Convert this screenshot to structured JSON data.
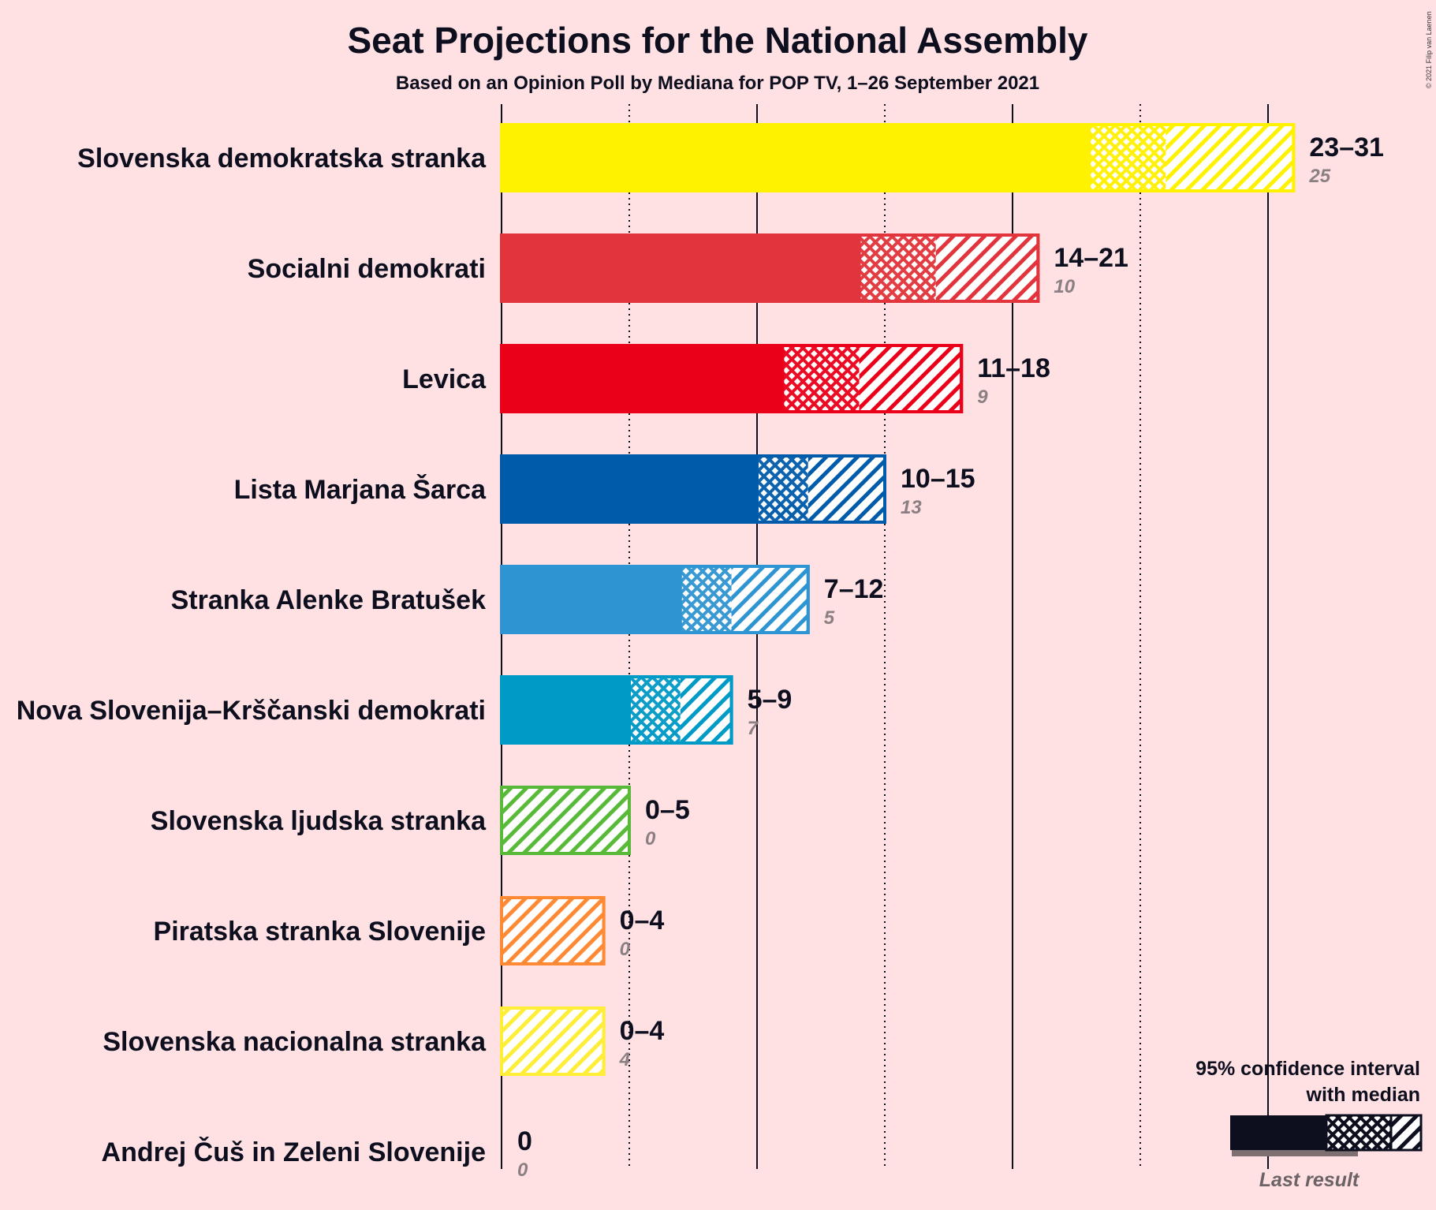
{
  "title": "Seat Projections for the National Assembly",
  "subtitle": "Based on an Opinion Poll by Mediana for POP TV, 1–26 September 2021",
  "copyright": "© 2021 Filip van Laenen",
  "legend": {
    "line1": "95% confidence interval",
    "line2": "with median",
    "last_result": "Last result"
  },
  "chart_data": {
    "type": "bar",
    "orientation": "horizontal",
    "x_unit": "seats",
    "xlim": [
      0,
      36
    ],
    "gridlines_solid": [
      0,
      10,
      20,
      30
    ],
    "gridlines_dotted": [
      5,
      15,
      25
    ],
    "parties": [
      {
        "name": "Slovenska demokratska stranka",
        "low": 23,
        "median": 26,
        "high": 31,
        "label": "23–31",
        "last": 25,
        "last_label": "25",
        "color": "#FFF200",
        "last_color": "#E8D878"
      },
      {
        "name": "Socialni demokrati",
        "low": 14,
        "median": 17,
        "high": 21,
        "label": "14–21",
        "last": 10,
        "last_label": "10",
        "color": "#E1343C",
        "last_color": "#E48A8E"
      },
      {
        "name": "Levica",
        "low": 11,
        "median": 14,
        "high": 18,
        "label": "11–18",
        "last": 9,
        "last_label": "9",
        "color": "#EB001A",
        "last_color": "#E2797F"
      },
      {
        "name": "Lista Marjana Šarca",
        "low": 10,
        "median": 12,
        "high": 15,
        "label": "10–15",
        "last": 13,
        "last_label": "13",
        "color": "#005CAB",
        "last_color": "#8CA1BE"
      },
      {
        "name": "Stranka Alenke Bratušek",
        "low": 7,
        "median": 9,
        "high": 12,
        "label": "7–12",
        "last": 5,
        "last_label": "5",
        "color": "#2E95D2",
        "last_color": "#A8B8CE"
      },
      {
        "name": "Nova Slovenija–Krščanski demokrati",
        "low": 5,
        "median": 7,
        "high": 9,
        "label": "5–9",
        "last": 7,
        "last_label": "7",
        "color": "#009AC7",
        "last_color": "#8CB6C8"
      },
      {
        "name": "Slovenska ljudska stranka",
        "low": 0,
        "median": 0,
        "high": 5,
        "label": "0–5",
        "last": 0,
        "last_label": "0",
        "color": "#59BA3A",
        "last_color": "#A9D29A"
      },
      {
        "name": "Piratska stranka Slovenije",
        "low": 0,
        "median": 0,
        "high": 4,
        "label": "0–4",
        "last": 0,
        "last_label": "0",
        "color": "#FF8A35",
        "last_color": "#F2B892"
      },
      {
        "name": "Slovenska nacionalna stranka",
        "low": 0,
        "median": 0,
        "high": 4,
        "label": "0–4",
        "last": 4,
        "last_label": "4",
        "color": "#FFEE38",
        "last_color": "#F5DC84"
      },
      {
        "name": "Andrej Čuš in Zeleni Slovenije",
        "low": 0,
        "median": 0,
        "high": 0,
        "label": "0",
        "last": 0,
        "last_label": "0",
        "color": "#3FAE49",
        "last_color": "#A9D29A"
      }
    ]
  }
}
